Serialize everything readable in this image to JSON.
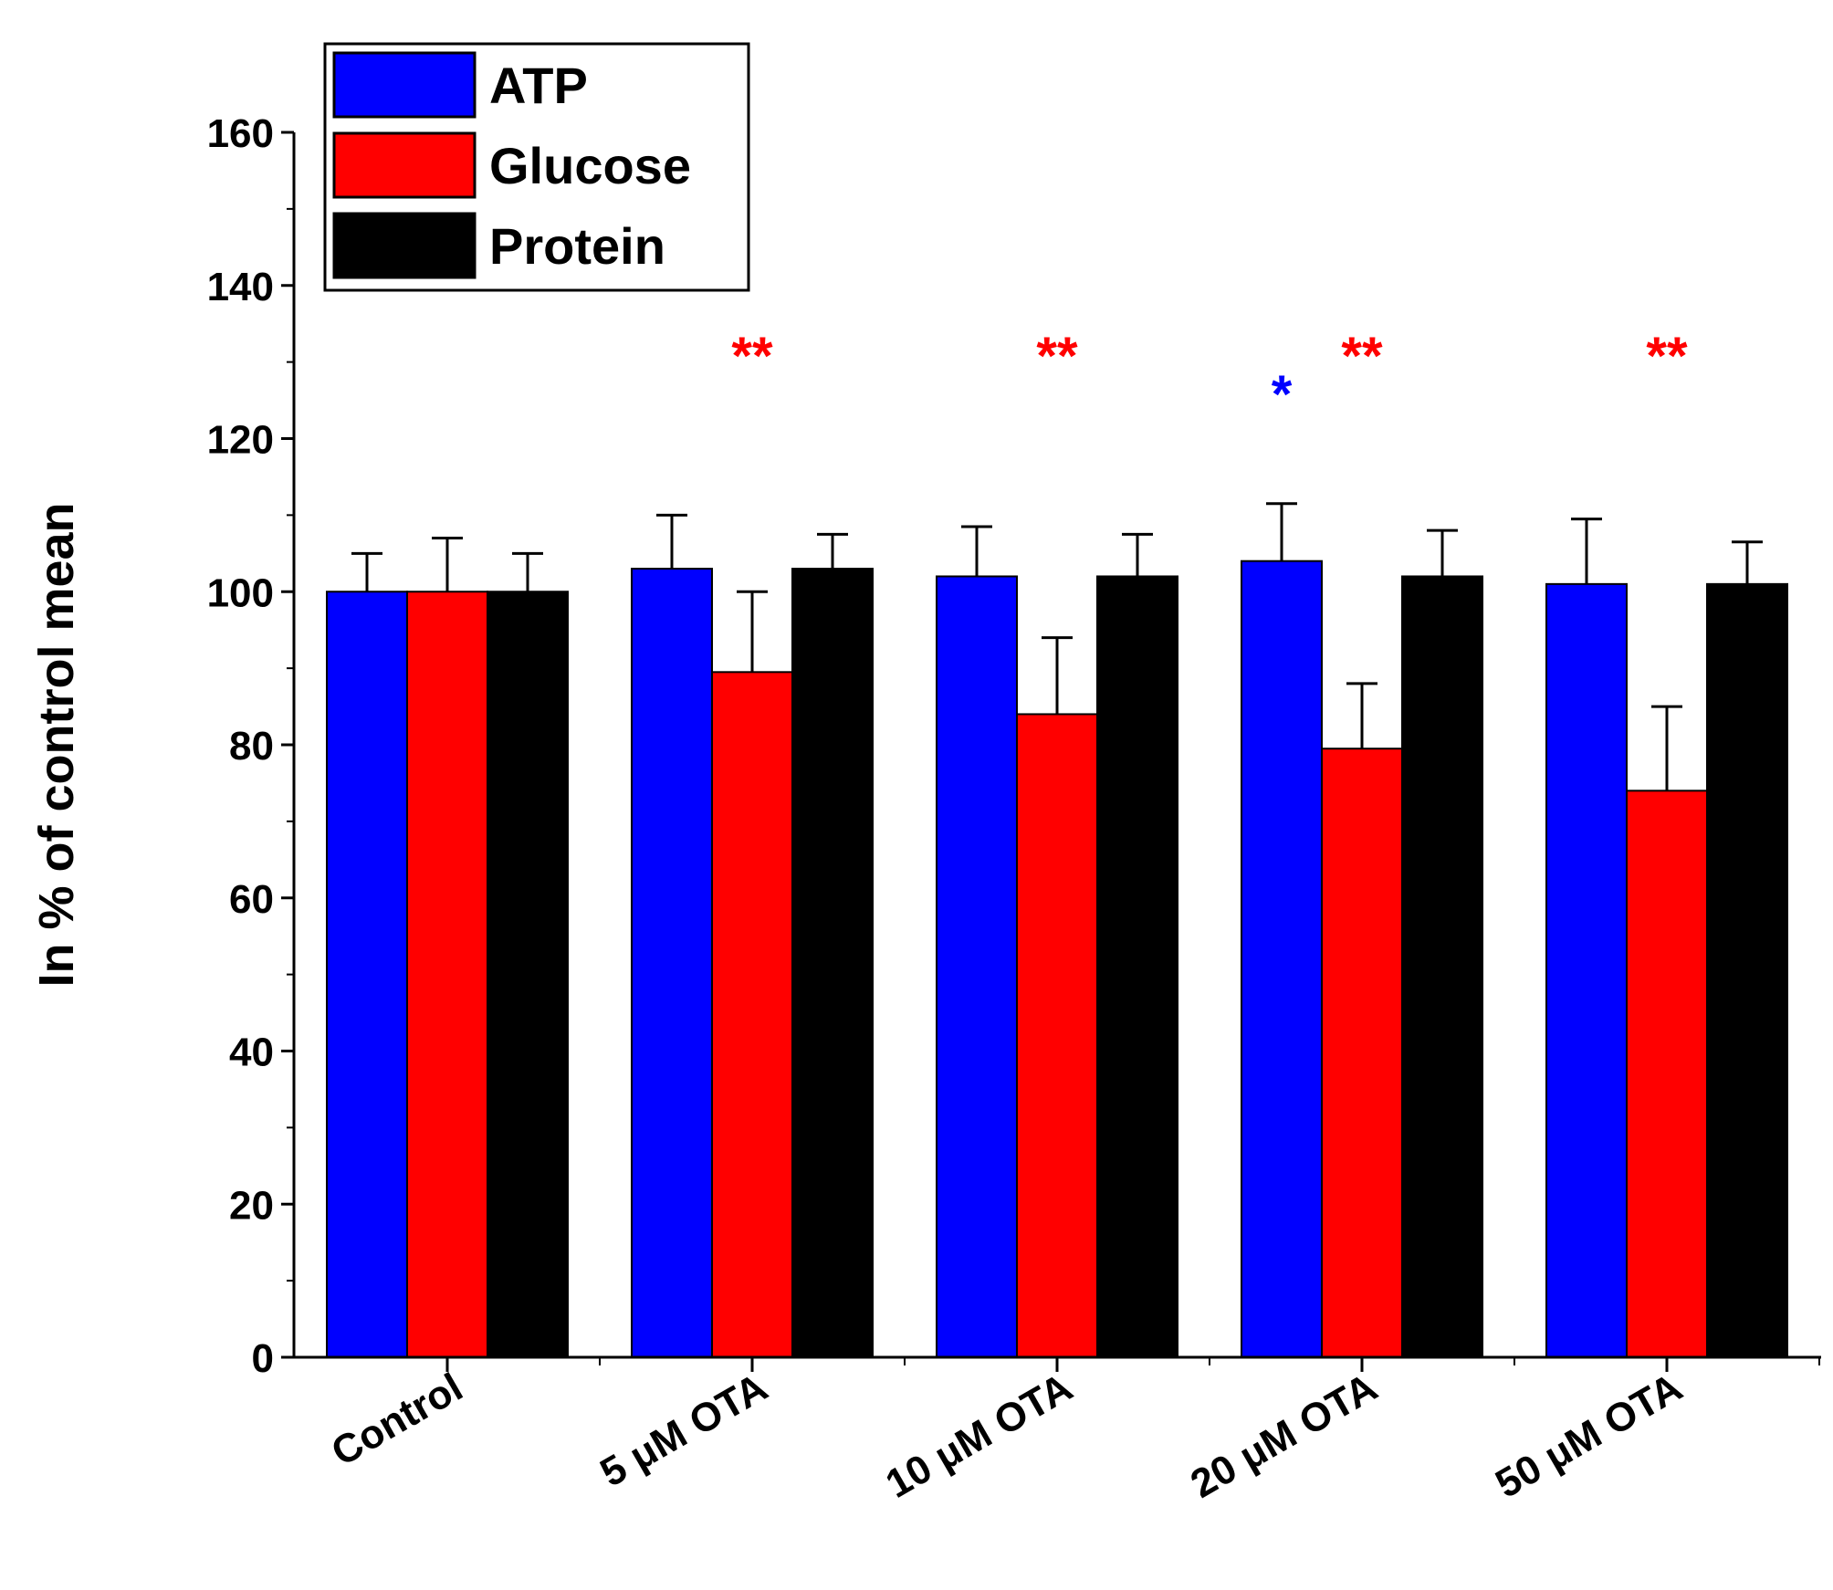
{
  "chart_data": {
    "type": "bar",
    "ylabel": "In % of control mean",
    "xlabel": "",
    "ylim": [
      0,
      160
    ],
    "yticks": [
      0,
      20,
      40,
      60,
      80,
      100,
      120,
      140,
      160
    ],
    "ytick_labels": [
      "0",
      "20",
      "40",
      "60",
      "80",
      "100",
      "120",
      "140",
      "160"
    ],
    "categories": [
      "Control",
      "5 μM OTA",
      "10 μM OTA",
      "20 μM OTA",
      "50 μM OTA"
    ],
    "series": [
      {
        "name": "ATP",
        "color": "#0000ff",
        "values": [
          100,
          103,
          102,
          104,
          101
        ],
        "errors": [
          5,
          7,
          6.5,
          7.5,
          8.5
        ]
      },
      {
        "name": "Glucose",
        "color": "#ff0000",
        "values": [
          100,
          89.5,
          84,
          79.5,
          74
        ],
        "errors": [
          7,
          10.5,
          10,
          8.5,
          11
        ]
      },
      {
        "name": "Protein",
        "color": "#000000",
        "values": [
          100,
          103,
          102,
          102,
          101
        ],
        "errors": [
          5,
          4.5,
          5.5,
          6,
          5.5
        ]
      }
    ],
    "legend": {
      "position": "top-left"
    },
    "annotations": [
      {
        "text": "**",
        "category": 1,
        "series": 1,
        "y": 131,
        "color": "#ff0000"
      },
      {
        "text": "**",
        "category": 2,
        "series": 1,
        "y": 131,
        "color": "#ff0000"
      },
      {
        "text": "*",
        "category": 3,
        "series": 0,
        "y": 126,
        "color": "#0000ff"
      },
      {
        "text": "**",
        "category": 3,
        "series": 1,
        "y": 131,
        "color": "#ff0000"
      },
      {
        "text": "**",
        "category": 4,
        "series": 1,
        "y": 131,
        "color": "#ff0000"
      }
    ]
  }
}
